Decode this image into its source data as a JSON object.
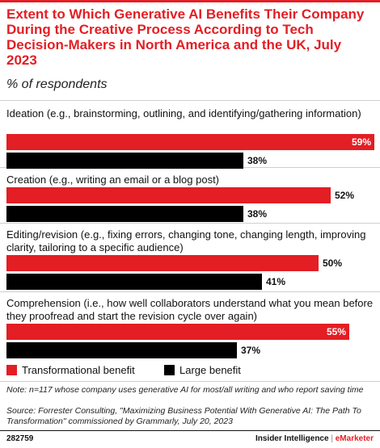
{
  "chart_data": {
    "type": "bar",
    "orientation": "horizontal",
    "title": "Extent to Which Generative AI Benefits Their Company During the Creative Process According to Tech Decision-Makers in North America and the UK, July 2023",
    "subtitle": "% of respondents",
    "categories": [
      "Ideation (e.g., brainstorming, outlining, and identifying/gathering information)",
      "Creation (e.g., writing an email or a blog post)",
      "Editing/revision (e.g., fixing errors, changing tone, changing length, improving clarity, tailoring to a specific audience)",
      "Comprehension (i.e., how well collaborators understand what you mean before they proofread and start the revision cycle over again)"
    ],
    "series": [
      {
        "name": "Transformational benefit",
        "color": "#e31e24",
        "values": [
          59,
          52,
          50,
          55
        ],
        "labels": [
          "59%",
          "52%",
          "50%",
          "55%"
        ]
      },
      {
        "name": "Large benefit",
        "color": "#000000",
        "values": [
          38,
          38,
          41,
          37
        ],
        "labels": [
          "38%",
          "38%",
          "41%",
          "37%"
        ]
      }
    ],
    "xlim": [
      0,
      59
    ],
    "legend_position": "bottom-left"
  },
  "note": "Note: n=117 whose company uses generative AI for most/all writing and who report saving time",
  "source": "Source: Forrester Consulting, \"Maximizing Business Potential With Generative AI: The Path To Transformation\" commissioned by Grammarly, July 20, 2023",
  "footer": {
    "id": "282759",
    "brand_left": "Insider Intelligence",
    "divider": "|",
    "brand_right": "eMarketer"
  }
}
